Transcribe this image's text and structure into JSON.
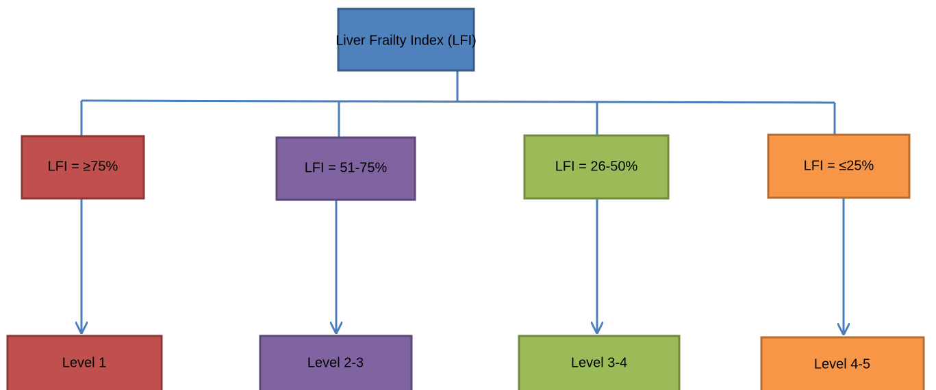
{
  "root": {
    "label": "Liver Frailty Index (LFI)"
  },
  "branches": [
    {
      "label": "LFI = ≥75%",
      "level": "Level 1"
    },
    {
      "label": "LFI = 51-75%",
      "level": "Level 2-3"
    },
    {
      "label": "LFI = 26-50%",
      "level": "Level 3-4"
    },
    {
      "label": "LFI = ≤25%",
      "level": "Level 4-5"
    }
  ]
}
